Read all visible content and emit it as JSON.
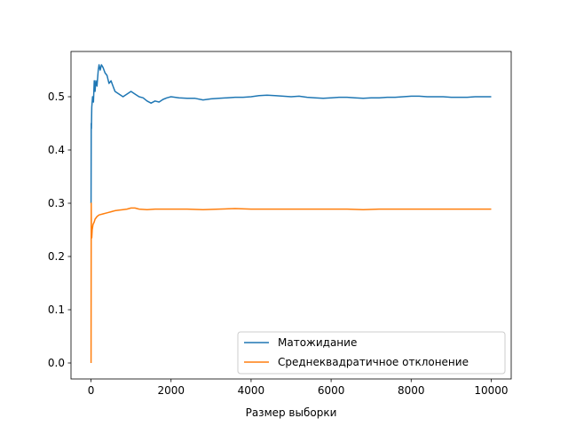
{
  "chart_data": {
    "type": "line",
    "title": "",
    "xlabel": "Размер выборки",
    "ylabel": "",
    "xlim": [
      -500,
      10500
    ],
    "ylim": [
      -0.03,
      0.585
    ],
    "xticks": [
      0,
      2000,
      4000,
      6000,
      8000,
      10000
    ],
    "yticks": [
      0.0,
      0.1,
      0.2,
      0.3,
      0.4,
      0.5
    ],
    "xtick_labels": [
      "0",
      "2000",
      "4000",
      "6000",
      "8000",
      "10000"
    ],
    "ytick_labels": [
      "0.0",
      "0.1",
      "0.2",
      "0.3",
      "0.4",
      "0.5"
    ],
    "grid": false,
    "legend_position": "lower-right",
    "series": [
      {
        "name": "Матожидание",
        "color": "#1f77b4",
        "points": [
          [
            1,
            0.3
          ],
          [
            5,
            0.45
          ],
          [
            10,
            0.44
          ],
          [
            20,
            0.48
          ],
          [
            40,
            0.5
          ],
          [
            60,
            0.49
          ],
          [
            80,
            0.53
          ],
          [
            100,
            0.51
          ],
          [
            120,
            0.53
          ],
          [
            150,
            0.52
          ],
          [
            180,
            0.55
          ],
          [
            200,
            0.56
          ],
          [
            230,
            0.55
          ],
          [
            260,
            0.56
          ],
          [
            300,
            0.555
          ],
          [
            350,
            0.545
          ],
          [
            400,
            0.54
          ],
          [
            450,
            0.525
          ],
          [
            500,
            0.53
          ],
          [
            550,
            0.52
          ],
          [
            600,
            0.51
          ],
          [
            700,
            0.505
          ],
          [
            800,
            0.5
          ],
          [
            900,
            0.505
          ],
          [
            1000,
            0.51
          ],
          [
            1100,
            0.505
          ],
          [
            1200,
            0.5
          ],
          [
            1300,
            0.498
          ],
          [
            1400,
            0.492
          ],
          [
            1500,
            0.488
          ],
          [
            1600,
            0.492
          ],
          [
            1700,
            0.49
          ],
          [
            1800,
            0.495
          ],
          [
            1900,
            0.498
          ],
          [
            2000,
            0.5
          ],
          [
            2200,
            0.498
          ],
          [
            2400,
            0.497
          ],
          [
            2600,
            0.497
          ],
          [
            2800,
            0.494
          ],
          [
            3000,
            0.496
          ],
          [
            3200,
            0.497
          ],
          [
            3400,
            0.498
          ],
          [
            3600,
            0.499
          ],
          [
            3800,
            0.499
          ],
          [
            4000,
            0.5
          ],
          [
            4200,
            0.502
          ],
          [
            4400,
            0.503
          ],
          [
            4600,
            0.502
          ],
          [
            4800,
            0.501
          ],
          [
            5000,
            0.5
          ],
          [
            5200,
            0.501
          ],
          [
            5400,
            0.499
          ],
          [
            5600,
            0.498
          ],
          [
            5800,
            0.497
          ],
          [
            6000,
            0.498
          ],
          [
            6200,
            0.499
          ],
          [
            6400,
            0.499
          ],
          [
            6600,
            0.498
          ],
          [
            6800,
            0.497
          ],
          [
            7000,
            0.498
          ],
          [
            7200,
            0.498
          ],
          [
            7400,
            0.499
          ],
          [
            7600,
            0.499
          ],
          [
            7800,
            0.5
          ],
          [
            8000,
            0.501
          ],
          [
            8200,
            0.501
          ],
          [
            8400,
            0.5
          ],
          [
            8600,
            0.5
          ],
          [
            8800,
            0.5
          ],
          [
            9000,
            0.499
          ],
          [
            9200,
            0.499
          ],
          [
            9400,
            0.499
          ],
          [
            9600,
            0.5
          ],
          [
            9800,
            0.5
          ],
          [
            10000,
            0.5
          ]
        ]
      },
      {
        "name": "Среднеквадратичное отклонение",
        "color": "#ff7f0e",
        "points": [
          [
            1,
            0.0
          ],
          [
            5,
            0.3
          ],
          [
            10,
            0.24
          ],
          [
            20,
            0.235
          ],
          [
            30,
            0.25
          ],
          [
            50,
            0.26
          ],
          [
            80,
            0.265
          ],
          [
            100,
            0.27
          ],
          [
            150,
            0.275
          ],
          [
            200,
            0.278
          ],
          [
            300,
            0.28
          ],
          [
            400,
            0.282
          ],
          [
            500,
            0.284
          ],
          [
            600,
            0.286
          ],
          [
            700,
            0.287
          ],
          [
            800,
            0.288
          ],
          [
            900,
            0.289
          ],
          [
            1000,
            0.291
          ],
          [
            1100,
            0.291
          ],
          [
            1200,
            0.289
          ],
          [
            1400,
            0.288
          ],
          [
            1600,
            0.289
          ],
          [
            1800,
            0.289
          ],
          [
            2000,
            0.289
          ],
          [
            2400,
            0.289
          ],
          [
            2800,
            0.288
          ],
          [
            3200,
            0.289
          ],
          [
            3600,
            0.29
          ],
          [
            4000,
            0.289
          ],
          [
            4400,
            0.289
          ],
          [
            4800,
            0.289
          ],
          [
            5200,
            0.289
          ],
          [
            5600,
            0.289
          ],
          [
            6000,
            0.289
          ],
          [
            6400,
            0.289
          ],
          [
            6800,
            0.288
          ],
          [
            7200,
            0.289
          ],
          [
            7600,
            0.289
          ],
          [
            8000,
            0.289
          ],
          [
            8400,
            0.289
          ],
          [
            8800,
            0.289
          ],
          [
            9200,
            0.289
          ],
          [
            9600,
            0.289
          ],
          [
            10000,
            0.289
          ]
        ]
      }
    ]
  }
}
